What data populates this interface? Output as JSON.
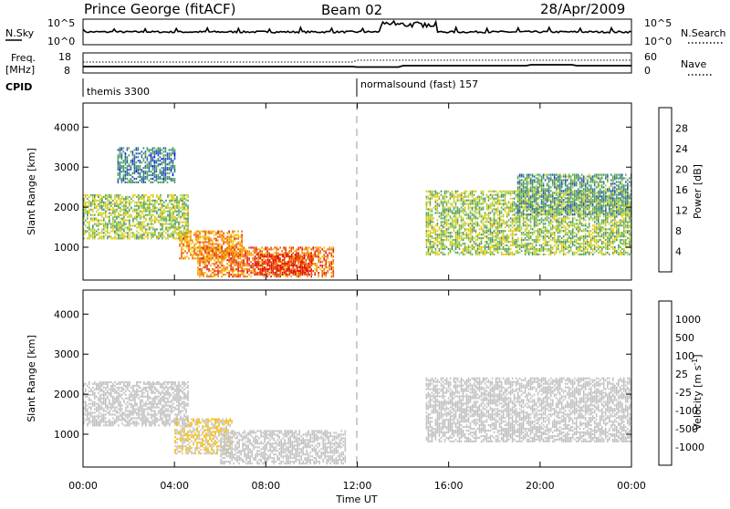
{
  "header": {
    "station": "Prince George (fitACF)",
    "beam": "Beam 02",
    "date": "28/Apr/2009"
  },
  "noise_panel": {
    "left_label": "N.Sky",
    "left_ticks": [
      "10^5",
      "10^0"
    ],
    "right_ticks": [
      "10^5",
      "10^0"
    ],
    "right_label": "N.Search"
  },
  "freq_panel": {
    "left_label_1": "Freq.",
    "left_label_2": "[MHz]",
    "left_ticks": [
      "18",
      "8"
    ],
    "right_ticks": [
      "60",
      "0"
    ],
    "right_label": "Nave"
  },
  "cpid_panel": {
    "label": "CPID",
    "program_1": "themis 3300",
    "program_2": "normalsound (fast) 157"
  },
  "colors": {
    "power_scale": [
      "#0000ff",
      "#2a4fc0",
      "#3d8a78",
      "#5aa85a",
      "#b9d23c",
      "#f0c800",
      "#f59a00",
      "#f05a00",
      "#e01414"
    ],
    "velocity_scale": [
      "#e01414",
      "#f05a00",
      "#f59a00",
      "#f5b800",
      "#c8c8c8",
      "#c8c8c8",
      "#5abf3c",
      "#3d8a78",
      "#2a4fc0",
      "#1428d2"
    ],
    "ground_scatter": "#c0c0c0"
  },
  "chart_data": [
    {
      "type": "heatmap",
      "title": "",
      "xlabel": "Time UT",
      "ylabel": "Slant Range [km]",
      "xlim_hours": [
        0,
        24
      ],
      "ylim_km": [
        180,
        4600
      ],
      "x_ticks": [
        "00:00",
        "04:00",
        "08:00",
        "12:00",
        "16:00",
        "20:00",
        "00:00"
      ],
      "y_ticks": [
        1000,
        2000,
        3000,
        4000
      ],
      "colorbar": {
        "label": "Power [dB]",
        "ticks": [
          "28",
          "24",
          "20",
          "16",
          "12",
          "8",
          "4"
        ],
        "range": [
          0,
          30
        ]
      },
      "features": [
        {
          "t_start": 0.0,
          "t_end": 4.6,
          "range_start": 1200,
          "range_end": 2300,
          "power": 14
        },
        {
          "t_start": 4.2,
          "t_end": 7.0,
          "range_start": 700,
          "range_end": 1400,
          "power": 22
        },
        {
          "t_start": 5.0,
          "t_end": 11.0,
          "range_start": 250,
          "range_end": 1000,
          "power": 24
        },
        {
          "t_start": 7.5,
          "t_end": 10.0,
          "range_start": 300,
          "range_end": 800,
          "power": 28
        },
        {
          "t_start": 1.5,
          "t_end": 4.0,
          "range_start": 2600,
          "range_end": 3500,
          "power": 8
        },
        {
          "t_start": 15.0,
          "t_end": 24.0,
          "range_start": 800,
          "range_end": 2400,
          "power": 14
        },
        {
          "t_start": 19.0,
          "t_end": 24.0,
          "range_start": 1800,
          "range_end": 2800,
          "power": 10
        }
      ]
    },
    {
      "type": "heatmap",
      "title": "",
      "xlabel": "Time UT",
      "ylabel": "Slant Range [km]",
      "xlim_hours": [
        0,
        24
      ],
      "ylim_km": [
        180,
        4600
      ],
      "x_ticks": [
        "00:00",
        "04:00",
        "08:00",
        "12:00",
        "16:00",
        "20:00",
        "00:00"
      ],
      "y_ticks": [
        1000,
        2000,
        3000,
        4000
      ],
      "colorbar": {
        "label": "Velocity [m s^-1]",
        "ticks": [
          "1000",
          "500",
          "100",
          "25",
          "-25",
          "-100",
          "-500",
          "-1000"
        ],
        "range": [
          -1000,
          1000
        ]
      },
      "features": [
        {
          "t_start": 0.0,
          "t_end": 4.6,
          "range_start": 1200,
          "range_end": 2300,
          "velocity": 0
        },
        {
          "t_start": 4.0,
          "t_end": 6.5,
          "range_start": 500,
          "range_end": 1400,
          "velocity": -200
        },
        {
          "t_start": 6.0,
          "t_end": 11.5,
          "range_start": 250,
          "range_end": 1100,
          "velocity": 0
        },
        {
          "t_start": 15.0,
          "t_end": 24.0,
          "range_start": 800,
          "range_end": 2400,
          "velocity": 0
        }
      ]
    }
  ]
}
